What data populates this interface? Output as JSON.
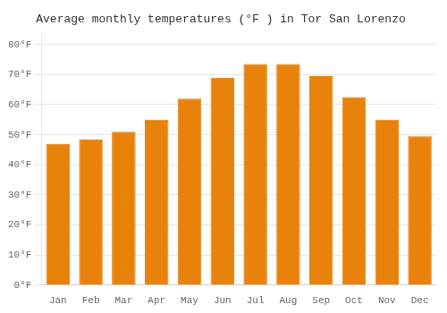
{
  "chart_data": {
    "type": "bar",
    "title": "Average monthly temperatures (°F ) in Tor San Lorenzo",
    "categories": [
      "Jan",
      "Feb",
      "Mar",
      "Apr",
      "May",
      "Jun",
      "Jul",
      "Aug",
      "Sep",
      "Oct",
      "Nov",
      "Dec"
    ],
    "values": [
      47.0,
      48.5,
      51.0,
      55.0,
      62.0,
      69.0,
      73.5,
      73.5,
      69.5,
      62.5,
      55.0,
      49.5
    ],
    "color": "#E8820A",
    "ylim": [
      0,
      83
    ],
    "yticks": [
      {
        "value": 0,
        "label": "0°F"
      },
      {
        "value": 10,
        "label": "10°F"
      },
      {
        "value": 20,
        "label": "20°F"
      },
      {
        "value": 30,
        "label": "30°F"
      },
      {
        "value": 40,
        "label": "40°F"
      },
      {
        "value": 50,
        "label": "50°F"
      },
      {
        "value": 60,
        "label": "60°F"
      },
      {
        "value": 70,
        "label": "70°F"
      },
      {
        "value": 80,
        "label": "80°F"
      }
    ],
    "grid": true
  }
}
